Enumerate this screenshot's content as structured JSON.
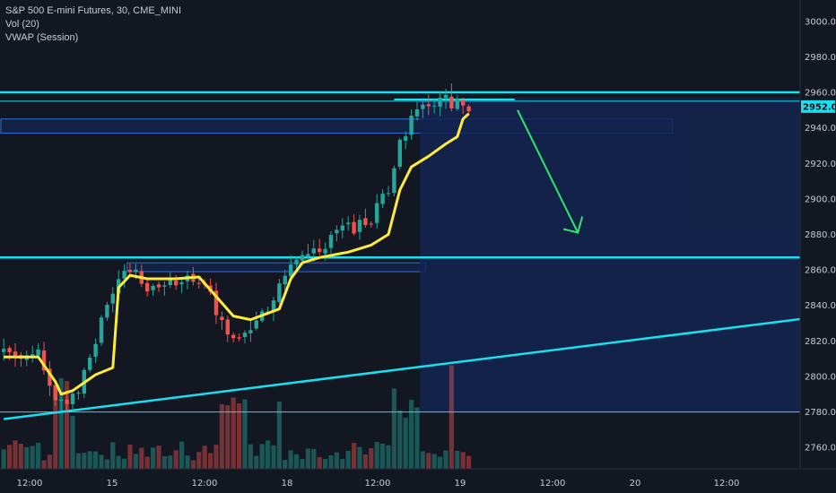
{
  "legend": {
    "symbol": "S&P 500 E-mini Futures, 30, CME_MINI",
    "volume": "Vol (20)",
    "vwap": "VWAP (Session)"
  },
  "colors": {
    "background": "#131722",
    "zone_fill": "#13254f",
    "up": "#26a69a",
    "down": "#ef5350",
    "vwap": "#ffeb3b",
    "level_line": "#19e0f0",
    "arrow": "#2ee86b",
    "price_tag": "#19e0f0"
  },
  "price_tag": "2952.00",
  "chart_data": {
    "type": "candlestick",
    "y_axis": {
      "ticks": [
        2760,
        2780,
        2800,
        2820,
        2840,
        2860,
        2880,
        2900,
        2920,
        2940,
        2960,
        2980,
        3000
      ],
      "range": [
        2748,
        3012
      ]
    },
    "x_axis": {
      "ticks": [
        "12:00",
        "15",
        "12:00",
        "18",
        "12:00",
        "19",
        "12:00",
        "20",
        "12:00"
      ]
    },
    "grid": false,
    "levels": [
      {
        "name": "resistance",
        "price": 2960
      },
      {
        "name": "resistance-lower",
        "price": 2955
      },
      {
        "name": "support",
        "price": 2867
      },
      {
        "name": "thin-level",
        "price": 2780
      }
    ],
    "trendline": {
      "from": {
        "bar": 0,
        "price": 2776
      },
      "to": {
        "bar": 157,
        "price": 2841
      }
    },
    "zones": [
      {
        "from_bar": 0,
        "to_bar": 116,
        "top": 2945,
        "bottom": 2937
      },
      {
        "from_bar": 22,
        "to_bar": 73,
        "top": 2864,
        "bottom": 2859
      },
      {
        "from_bar": 73,
        "to_bar": 157,
        "top": 2957,
        "bottom": 2780
      }
    ],
    "arrow": {
      "from": {
        "bar": 89.5,
        "price": 2950
      },
      "to": {
        "bar": 100,
        "price": 2881
      }
    },
    "series_vwap_name": "VWAP (Session)",
    "series_volume_name": "Vol (20)"
  }
}
